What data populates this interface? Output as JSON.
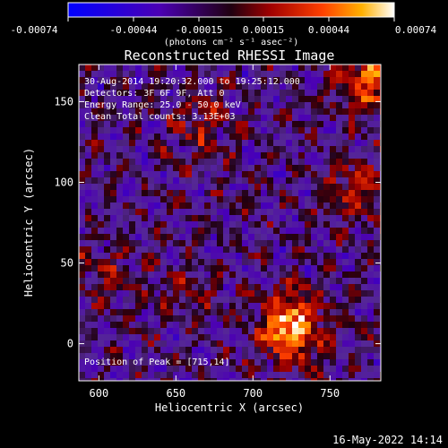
{
  "colorbar": {
    "ticks": [
      "-0.00074",
      "-0.00044",
      "-0.00015",
      "0.00015",
      "0.00044",
      "0.00074"
    ],
    "unit_label": "(photons cm⁻² s⁻¹ asec⁻²)"
  },
  "chart_data": {
    "type": "heatmap",
    "title": "Reconstructed RHESSI Image",
    "xlabel": "Heliocentric X (arcsec)",
    "ylabel": "Heliocentric Y (arcsec)",
    "xlim": [
      587,
      783
    ],
    "ylim": [
      -23,
      173
    ],
    "xticks": [
      600,
      650,
      700,
      750
    ],
    "yticks": [
      0,
      50,
      100,
      150
    ],
    "vlim": [
      -0.00074,
      0.00074
    ],
    "colormap": "rhessi-blue-purple-red-yellow",
    "grid": false,
    "annotations": [
      "30-Aug-2014 19:20:32.000 to 19:25:12.000",
      "Detectors: 3F 6F 9F, Att 0",
      "Energy Range: 25.0 - 50.0 keV",
      "Clean    Total counts: 3.13E+03"
    ],
    "peak_label": "Position of Peak = [715,14]",
    "peak_position": [
      715,
      14
    ],
    "sources": [
      {
        "x": 725,
        "y": 10,
        "amplitude": 0.00074
      },
      {
        "x": 775,
        "y": 165,
        "amplitude": 0.0005
      },
      {
        "x": 765,
        "y": 95,
        "amplitude": 0.0003
      },
      {
        "x": 665,
        "y": 135,
        "amplitude": 0.00022
      },
      {
        "x": 605,
        "y": 45,
        "amplitude": 0.00018
      },
      {
        "x": 655,
        "y": 30,
        "amplitude": 0.00015
      }
    ]
  },
  "footer": {
    "date": "16-May-2022 14:14"
  }
}
